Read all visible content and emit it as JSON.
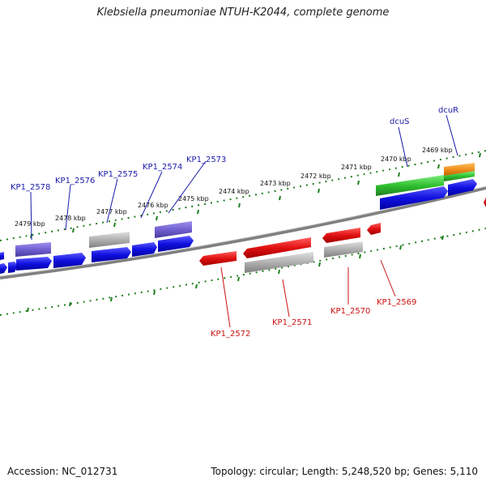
{
  "header": {
    "title": "Klebsiella pneumoniae NTUH-K2044, complete genome"
  },
  "footer": {
    "accession": "Accession: NC_012731",
    "stats": "Topology: circular; Length: 5,248,520 bp; Genes: 5,110"
  },
  "colors": {
    "forward_gene": "#1010e0",
    "reverse_gene": "#e01010",
    "grey_gene": "#b0b0b0",
    "violet_gene": "#7060d0",
    "green_gene": "#30c030",
    "orange_gene": "#f09020",
    "label_forward": "#1a1aaa",
    "label_reverse": "#cc1111",
    "ruler": "#208020",
    "backbone": "#808080"
  },
  "kbp_ticks": [
    "2479 kbp",
    "2478 kbp",
    "2477 kbp",
    "2476 kbp",
    "2475 kbp",
    "2474 kbp",
    "2473 kbp",
    "2472 kbp",
    "2471 kbp",
    "2470 kbp",
    "2469 kbp"
  ],
  "forward_labels": [
    "KP1_2578",
    "KP1_2576",
    "KP1_2575",
    "KP1_2574",
    "KP1_2573",
    "dcuS",
    "dcuR"
  ],
  "reverse_labels": [
    "KP1_2572",
    "KP1_2571",
    "KP1_2570",
    "KP1_2569"
  ]
}
